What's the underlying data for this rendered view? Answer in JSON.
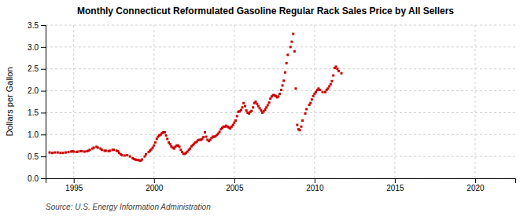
{
  "chart_data": {
    "type": "scatter",
    "title": "Monthly Connecticut Reformulated Gasoline Regular Rack Sales Price by All Sellers",
    "ylabel": "Dollars per Gallon",
    "source": "Source: U.S. Energy Information Administration",
    "color": "#cc0000",
    "marker": "square",
    "grid": true,
    "xlim": [
      1993.25,
      2022.5
    ],
    "ylim": [
      0.0,
      3.5
    ],
    "xticks": [
      1995,
      2000,
      2005,
      2010,
      2015,
      2020
    ],
    "yticks": [
      {
        "value": 0.0,
        "label": "0.0"
      },
      0.5,
      {
        "value": 1.0,
        "label": "1.0"
      },
      1.5,
      {
        "value": 2.0,
        "label": "2.0"
      },
      2.5,
      {
        "value": 3.0,
        "label": "3.0"
      },
      3.5
    ],
    "x": [
      1993.5,
      1993.67,
      1993.83,
      1994.0,
      1994.17,
      1994.33,
      1994.5,
      1994.67,
      1994.83,
      1994.92,
      1995.0,
      1995.17,
      1995.25,
      1995.42,
      1995.5,
      1995.67,
      1995.83,
      1995.92,
      1996.0,
      1996.17,
      1996.25,
      1996.42,
      1996.5,
      1996.67,
      1996.75,
      1996.92,
      1997.0,
      1997.17,
      1997.25,
      1997.42,
      1997.5,
      1997.67,
      1997.75,
      1997.83,
      1997.92,
      1998.0,
      1998.17,
      1998.33,
      1998.5,
      1998.67,
      1998.75,
      1998.83,
      1998.92,
      1999.0,
      1999.08,
      1999.17,
      1999.25,
      1999.42,
      1999.5,
      1999.67,
      1999.75,
      1999.83,
      1999.92,
      2000.0,
      2000.08,
      2000.17,
      2000.25,
      2000.33,
      2000.42,
      2000.5,
      2000.58,
      2000.67,
      2000.75,
      2000.83,
      2000.92,
      2001.0,
      2001.08,
      2001.17,
      2001.25,
      2001.33,
      2001.42,
      2001.5,
      2001.58,
      2001.67,
      2001.75,
      2001.83,
      2001.92,
      2002.0,
      2002.08,
      2002.17,
      2002.25,
      2002.33,
      2002.42,
      2002.5,
      2002.58,
      2002.67,
      2002.75,
      2002.83,
      2002.92,
      2003.0,
      2003.08,
      2003.17,
      2003.25,
      2003.33,
      2003.42,
      2003.5,
      2003.58,
      2003.67,
      2003.75,
      2003.83,
      2003.92,
      2004.0,
      2004.08,
      2004.17,
      2004.25,
      2004.33,
      2004.42,
      2004.5,
      2004.58,
      2004.67,
      2004.75,
      2004.83,
      2004.92,
      2005.0,
      2005.08,
      2005.17,
      2005.25,
      2005.33,
      2005.42,
      2005.5,
      2005.58,
      2005.67,
      2005.75,
      2005.83,
      2005.92,
      2006.0,
      2006.08,
      2006.17,
      2006.25,
      2006.33,
      2006.42,
      2006.5,
      2006.58,
      2006.67,
      2006.75,
      2006.83,
      2006.92,
      2007.0,
      2007.08,
      2007.17,
      2007.25,
      2007.33,
      2007.42,
      2007.5,
      2007.58,
      2007.67,
      2007.75,
      2007.83,
      2007.92,
      2008.0,
      2008.08,
      2008.17,
      2008.25,
      2008.33,
      2008.5,
      2008.58,
      2008.67,
      2008.75,
      2008.83,
      2008.92,
      2009.0,
      2009.08,
      2009.17,
      2009.25,
      2009.42,
      2009.5,
      2009.67,
      2009.75,
      2009.83,
      2009.92,
      2010.0,
      2010.08,
      2010.17,
      2010.25,
      2010.33,
      2010.5,
      2010.67,
      2010.75,
      2010.83,
      2010.92,
      2011.0,
      2011.08,
      2011.17,
      2011.25,
      2011.33,
      2011.42,
      2011.5,
      2011.67
    ],
    "values": [
      0.59,
      0.58,
      0.59,
      0.59,
      0.58,
      0.58,
      0.59,
      0.6,
      0.61,
      0.62,
      0.61,
      0.6,
      0.61,
      0.62,
      0.62,
      0.61,
      0.62,
      0.63,
      0.65,
      0.68,
      0.7,
      0.72,
      0.7,
      0.68,
      0.65,
      0.63,
      0.63,
      0.62,
      0.63,
      0.65,
      0.65,
      0.63,
      0.62,
      0.58,
      0.55,
      0.53,
      0.52,
      0.53,
      0.5,
      0.46,
      0.44,
      0.43,
      0.42,
      0.42,
      0.41,
      0.4,
      0.43,
      0.5,
      0.55,
      0.6,
      0.63,
      0.66,
      0.7,
      0.75,
      0.82,
      0.9,
      0.95,
      0.98,
      1.0,
      1.03,
      1.05,
      1.05,
      0.98,
      0.9,
      0.82,
      0.78,
      0.73,
      0.7,
      0.68,
      0.72,
      0.75,
      0.75,
      0.72,
      0.65,
      0.6,
      0.56,
      0.56,
      0.58,
      0.61,
      0.65,
      0.68,
      0.73,
      0.76,
      0.79,
      0.82,
      0.84,
      0.87,
      0.88,
      0.88,
      0.9,
      0.94,
      1.05,
      0.95,
      0.88,
      0.85,
      0.88,
      0.92,
      0.95,
      0.95,
      0.96,
      0.99,
      1.02,
      1.06,
      1.12,
      1.15,
      1.18,
      1.18,
      1.2,
      1.18,
      1.16,
      1.14,
      1.18,
      1.22,
      1.27,
      1.32,
      1.42,
      1.52,
      1.53,
      1.56,
      1.62,
      1.72,
      1.65,
      1.55,
      1.5,
      1.48,
      1.52,
      1.54,
      1.62,
      1.72,
      1.75,
      1.7,
      1.65,
      1.6,
      1.55,
      1.5,
      1.53,
      1.57,
      1.62,
      1.67,
      1.73,
      1.82,
      1.87,
      1.9,
      1.9,
      1.88,
      1.85,
      1.87,
      1.93,
      2.02,
      2.12,
      2.23,
      2.42,
      2.63,
      2.82,
      3.0,
      3.12,
      3.3,
      2.9,
      2.05,
      1.22,
      1.12,
      1.1,
      1.18,
      1.32,
      1.48,
      1.58,
      1.68,
      1.72,
      1.8,
      1.88,
      1.93,
      1.97,
      2.02,
      2.05,
      2.02,
      1.97,
      1.97,
      2.02,
      2.05,
      2.1,
      2.15,
      2.22,
      2.35,
      2.52,
      2.55,
      2.5,
      2.45,
      2.4
    ]
  }
}
